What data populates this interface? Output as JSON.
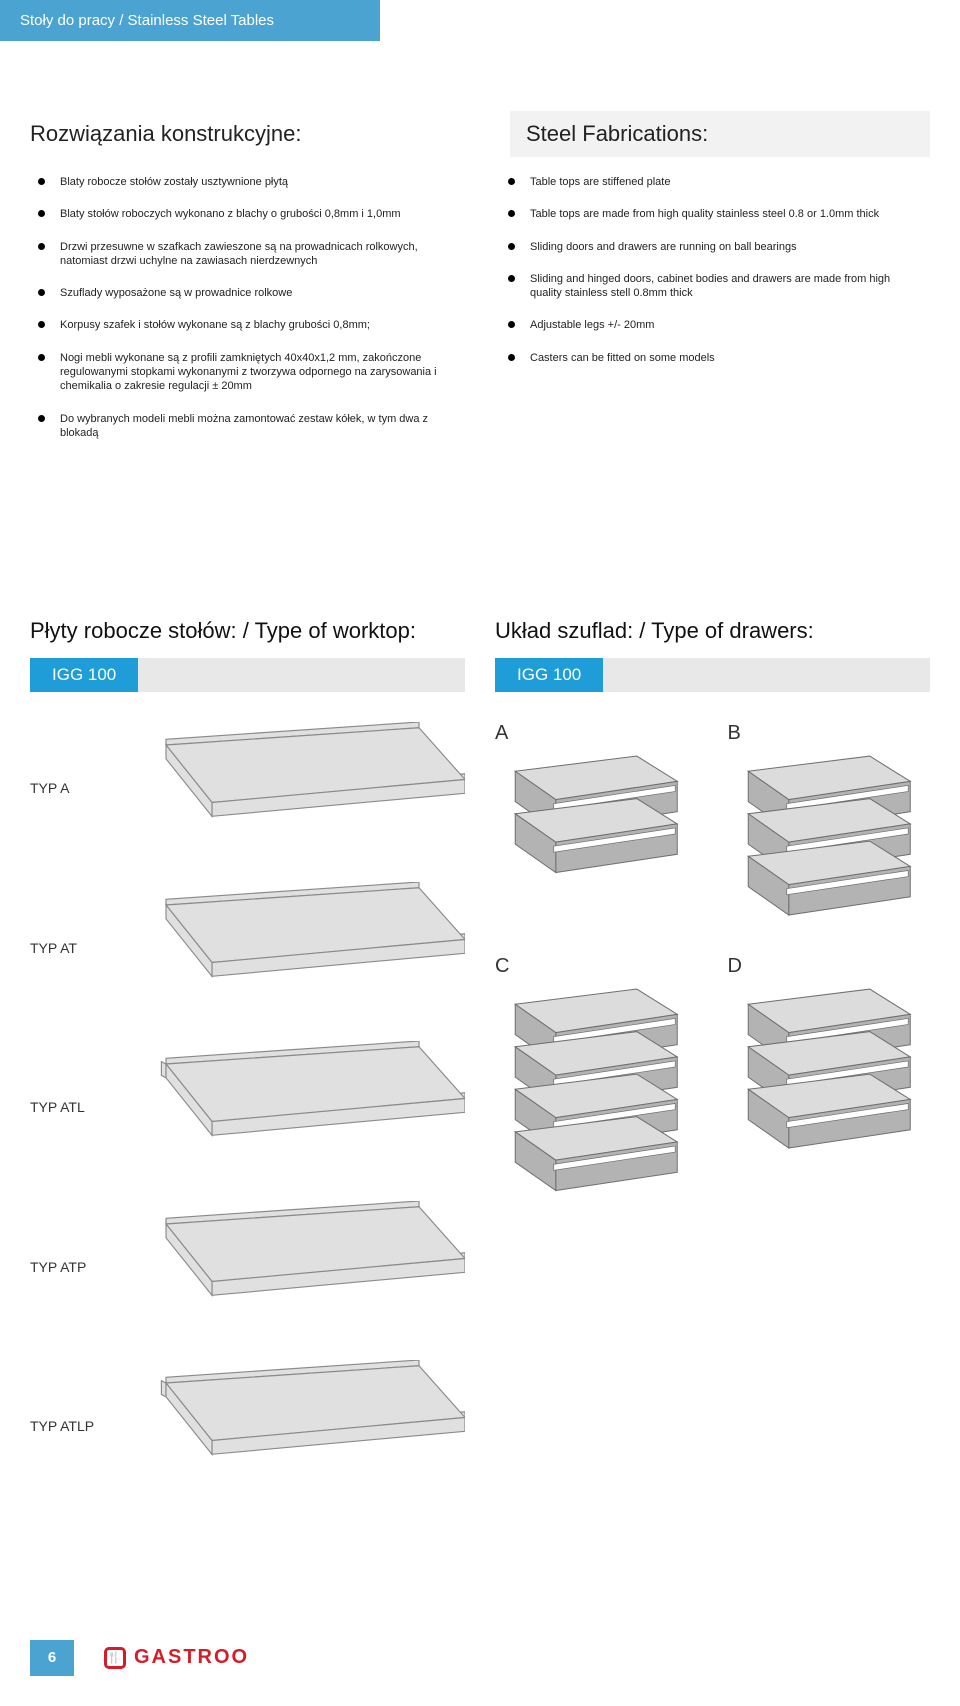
{
  "header": {
    "tab": "Stoły do pracy / Stainless Steel Tables"
  },
  "left_section": {
    "heading": "Rozwiązania konstrukcyjne:",
    "items": [
      "Blaty robocze stołów zostały usztywnione płytą",
      "Blaty stołów roboczych wykonano z blachy o grubości 0,8mm i 1,0mm",
      "Drzwi przesuwne w szafkach zawieszone są na prowadnicach rolkowych, natomiast drzwi uchylne na zawiasach nierdzewnych",
      "Szuflady wyposażone są w prowadnice rolkowe",
      "Korpusy szafek i stołów wykonane są z blachy grubości 0,8mm;",
      "Nogi mebli wykonane są z profili zamkniętych 40x40x1,2 mm, zakończone regulowanymi stopkami wykonanymi z tworzywa odpornego na zarysowania i chemikalia o zakresie regulacji ± 20mm",
      "Do wybranych modeli mebli można zamontować zestaw kółek, w tym dwa z blokadą"
    ]
  },
  "right_section": {
    "heading": "Steel Fabrications:",
    "items": [
      "Table tops are stiffened plate",
      "Table tops are made from high quality stainless steel 0.8 or 1.0mm thick",
      "Sliding doors and drawers are running on ball bearings",
      "Sliding and hinged doors, cabinet bodies and drawers are made from high quality stainless stell 0.8mm thick",
      "Adjustable legs +/- 20mm",
      "Casters can be fitted on some models"
    ]
  },
  "worktop_section": {
    "heading": "Płyty robocze stołów: / Type of worktop:",
    "igg": "IGG 100",
    "types": [
      "TYP A",
      "TYP AT",
      "TYP ATL",
      "TYP ATP",
      "TYP ATLP"
    ],
    "fill": "#e0e0e0",
    "stroke": "#8a8a8a"
  },
  "drawer_section": {
    "heading": "Układ szuflad: / Type of drawers:",
    "igg": "IGG 100",
    "labels": [
      "A",
      "B",
      "C",
      "D"
    ],
    "counts": [
      2,
      3,
      4,
      3
    ],
    "fill": "#b3b3b3",
    "fill_light": "#dcdcdc",
    "stroke": "#6f6f6f"
  },
  "footer": {
    "page": "6",
    "brand": "GASTROO",
    "brand_icon_glyph": "🍴"
  },
  "colors": {
    "blue_tab": "#4ba3d1",
    "blue_bar": "#1e9dd8",
    "grey_bar": "#e8e8e8",
    "red": "#d31e2a"
  }
}
